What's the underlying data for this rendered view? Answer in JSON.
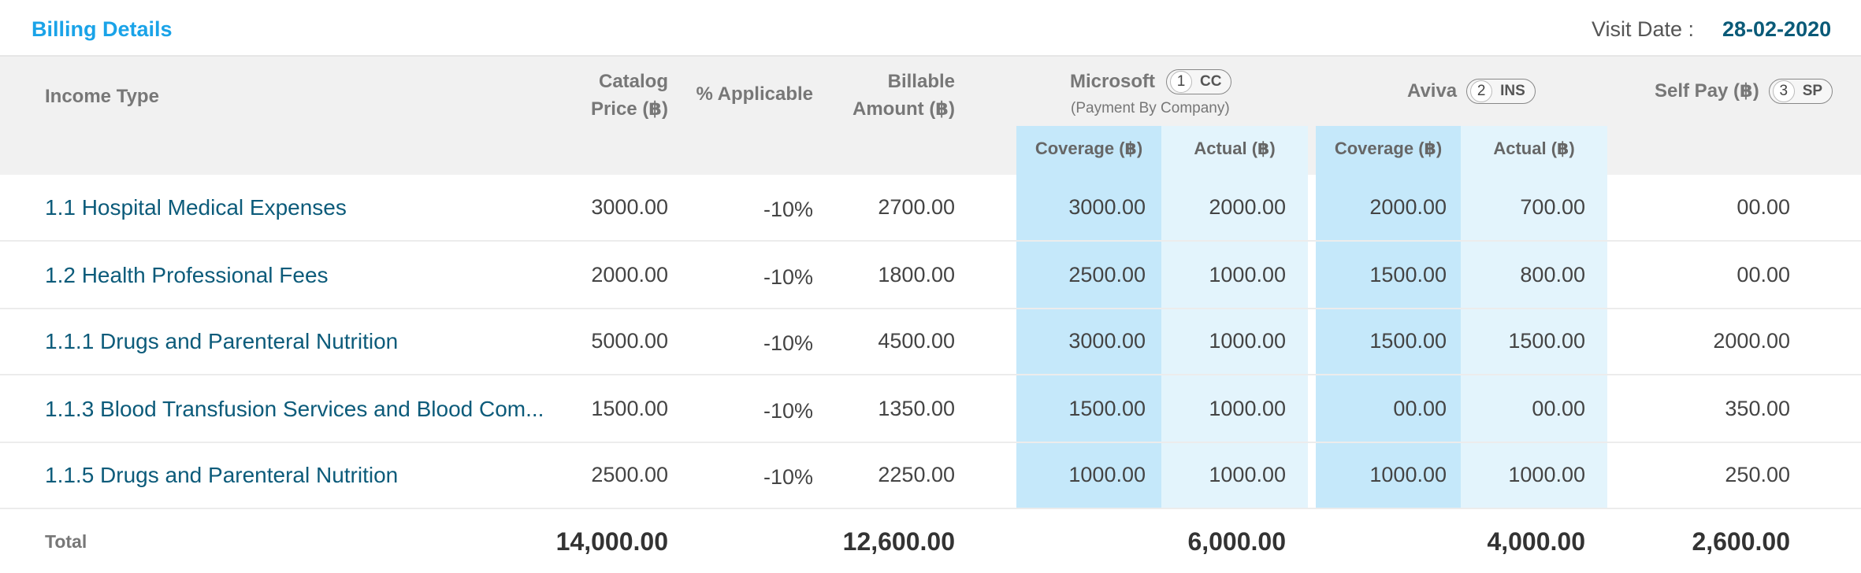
{
  "header": {
    "title": "Billing Details",
    "visit_label": "Visit Date :",
    "visit_date": "28-02-2020"
  },
  "columns": {
    "income_type": "Income Type",
    "catalog_price_l1": "Catalog",
    "catalog_price_l2": "Price (฿)",
    "pct_applicable": "% Applicable",
    "billable_l1": "Billable",
    "billable_l2": "Amount (฿)",
    "payer1": {
      "name": "Microsoft",
      "num": "1",
      "code": "CC",
      "note": "(Payment By Company)"
    },
    "payer2": {
      "name": "Aviva",
      "num": "2",
      "code": "INS"
    },
    "payer3": {
      "name": "Self Pay (฿)",
      "num": "3",
      "code": "SP"
    },
    "coverage": "Coverage (฿)",
    "actual": "Actual (฿)"
  },
  "rows": [
    {
      "name": "1.1 Hospital Medical Expenses",
      "catalog": "3000.00",
      "pct": "-10%",
      "billable": "2700.00",
      "p1_cov": "3000.00",
      "p1_act": "2000.00",
      "p2_cov": "2000.00",
      "p2_act": "700.00",
      "self": "00.00"
    },
    {
      "name": "1.2 Health Professional Fees",
      "catalog": "2000.00",
      "pct": "-10%",
      "billable": "1800.00",
      "p1_cov": "2500.00",
      "p1_act": "1000.00",
      "p2_cov": "1500.00",
      "p2_act": "800.00",
      "self": "00.00"
    },
    {
      "name": "1.1.1 Drugs and Parenteral Nutrition",
      "catalog": "5000.00",
      "pct": "-10%",
      "billable": "4500.00",
      "p1_cov": "3000.00",
      "p1_act": "1000.00",
      "p2_cov": "1500.00",
      "p2_act": "1500.00",
      "self": "2000.00"
    },
    {
      "name": "1.1.3 Blood Transfusion Services and Blood  Com...",
      "catalog": "1500.00",
      "pct": "-10%",
      "billable": "1350.00",
      "p1_cov": "1500.00",
      "p1_act": "1000.00",
      "p2_cov": "00.00",
      "p2_act": "00.00",
      "self": "350.00"
    },
    {
      "name": "1.1.5 Drugs and Parenteral Nutrition",
      "catalog": "2500.00",
      "pct": "-10%",
      "billable": "2250.00",
      "p1_cov": "1000.00",
      "p1_act": "1000.00",
      "p2_cov": "1000.00",
      "p2_act": "1000.00",
      "self": "250.00"
    }
  ],
  "totals": {
    "label": "Total",
    "catalog": "14,000.00",
    "billable": "12,600.00",
    "p1_act": "6,000.00",
    "p2_act": "4,000.00",
    "self": "2,600.00"
  }
}
